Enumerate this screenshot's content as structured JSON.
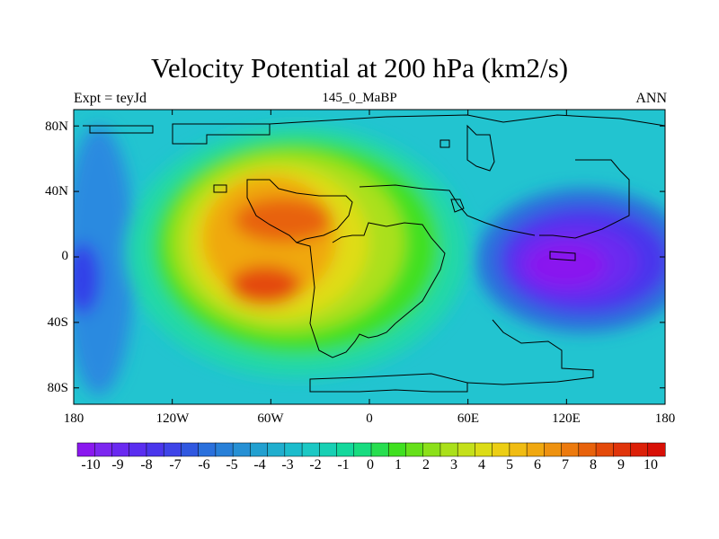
{
  "title": "Velocity Potential at 200 hPa (km2/s)",
  "left_label": "Expt = teyJd",
  "center_label": "145_0_MaBP",
  "right_label": "ANN",
  "map": {
    "projection": "cylindrical equidistant",
    "field": "velocity potential",
    "level_hPa": 200,
    "units": "km2/s",
    "lon_range": [
      -180,
      180
    ],
    "lat_range": [
      -90,
      90
    ],
    "lat_ticks": [
      {
        "value": 80,
        "label": "80N"
      },
      {
        "value": 40,
        "label": "40N"
      },
      {
        "value": 0,
        "label": "0"
      },
      {
        "value": -40,
        "label": "40S"
      },
      {
        "value": -80,
        "label": "80S"
      }
    ],
    "lon_ticks": [
      {
        "value": -180,
        "label": "180"
      },
      {
        "value": -120,
        "label": "120W"
      },
      {
        "value": -60,
        "label": "60W"
      },
      {
        "value": 0,
        "label": "0"
      },
      {
        "value": 60,
        "label": "60E"
      },
      {
        "value": 120,
        "label": "120E"
      },
      {
        "value": 180,
        "label": "180"
      }
    ],
    "features": [
      {
        "name": "maximum north",
        "lon": -38,
        "lat": 24,
        "value": 10
      },
      {
        "name": "maximum south",
        "lon": -65,
        "lat": -20,
        "value": 10
      },
      {
        "name": "minimum",
        "lon": 130,
        "lat": 0,
        "value": -10
      }
    ]
  },
  "colorbar": {
    "labels": [
      "-10",
      "-9",
      "-8",
      "-7",
      "-6",
      "-5",
      "-4",
      "-3",
      "-2",
      "-1",
      "0",
      "1",
      "2",
      "3",
      "4",
      "5",
      "6",
      "7",
      "8",
      "9",
      "10"
    ],
    "colors": [
      "#8a18ef",
      "#7c27f0",
      "#6a2af0",
      "#5a2ef0",
      "#4a36ec",
      "#3e44e8",
      "#3058e0",
      "#2a70dc",
      "#2880d8",
      "#2690d4",
      "#22a0d0",
      "#20aece",
      "#1cbccc",
      "#1cc8c4",
      "#18d0b4",
      "#14d89c",
      "#18dc80",
      "#28de50",
      "#40e020",
      "#66e01a",
      "#8ce01a",
      "#aae01a",
      "#c4e01a",
      "#dcdc16",
      "#ecce14",
      "#f0bc12",
      "#f0a810",
      "#ee9210",
      "#ec7a0e",
      "#e8620c",
      "#e44a0a",
      "#e0340a",
      "#dc2008",
      "#d81006"
    ]
  }
}
